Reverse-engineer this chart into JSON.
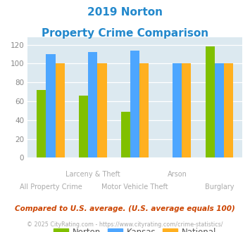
{
  "title_line1": "2019 Norton",
  "title_line2": "Property Crime Comparison",
  "groups": [
    {
      "name": "All Property Crime",
      "norton": 72,
      "kansas": 110,
      "national": 100
    },
    {
      "name": "Larceny & Theft",
      "norton": 66,
      "kansas": 112,
      "national": 100
    },
    {
      "name": "Motor Vehicle Theft",
      "norton": 49,
      "kansas": 114,
      "national": 100
    },
    {
      "name": "Arson",
      "norton": 0,
      "kansas": 100,
      "national": 100
    },
    {
      "name": "Burglary",
      "norton": 118,
      "kansas": 100,
      "national": 100
    }
  ],
  "norton_color": "#80c000",
  "kansas_color": "#4da6ff",
  "national_color": "#ffb020",
  "title_color": "#2288cc",
  "plot_bg": "#dce9f0",
  "yticks": [
    0,
    20,
    40,
    60,
    80,
    100,
    120
  ],
  "footnote1": "Compared to U.S. average. (U.S. average equals 100)",
  "footnote2": "© 2025 CityRating.com - https://www.cityrating.com/crime-statistics/",
  "footnote1_color": "#cc4400",
  "footnote2_color": "#aaaaaa",
  "xlabel_row1_color": "#aaaaaa",
  "xlabel_row2_color": "#aaaaaa"
}
